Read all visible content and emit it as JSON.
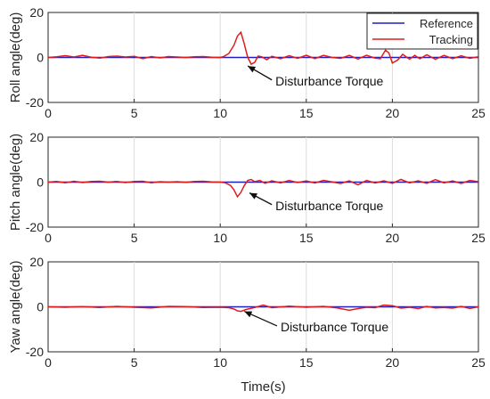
{
  "chart_data": [
    {
      "type": "line",
      "title": "",
      "xlabel": "",
      "ylabel": "Roll angle(deg)",
      "xlim": [
        0,
        25
      ],
      "ylim": [
        -20,
        20
      ],
      "x_ticks": [
        0,
        5,
        10,
        15,
        20,
        25
      ],
      "y_ticks": [
        -20,
        0,
        20
      ],
      "grid": "vertical",
      "legend": {
        "position": "top-right",
        "items": [
          {
            "name": "Reference",
            "color": "#1f1fbf"
          },
          {
            "name": "Tracking",
            "color": "#e01b1b"
          }
        ]
      },
      "annotation": {
        "text": "Disturbance Torque",
        "arrow_to": [
          11.6,
          -3.8
        ],
        "arrow_from": [
          13.0,
          -10.0
        ]
      },
      "series": [
        {
          "name": "Reference",
          "color": "#1f1fbf",
          "x": [
            0,
            25
          ],
          "y": [
            0,
            0
          ]
        },
        {
          "name": "Tracking",
          "color": "#e01b1b",
          "x": [
            0,
            0.5,
            1.0,
            1.5,
            2.0,
            2.5,
            3.0,
            3.5,
            4.0,
            4.5,
            5.0,
            5.5,
            6.0,
            6.5,
            7.0,
            7.5,
            8.0,
            8.5,
            9.0,
            9.5,
            10.0,
            10.2,
            10.5,
            10.8,
            11.0,
            11.2,
            11.4,
            11.6,
            11.8,
            12.0,
            12.2,
            12.4,
            12.7,
            13.0,
            13.5,
            14.0,
            14.5,
            15.0,
            15.5,
            16.0,
            16.5,
            17.0,
            17.5,
            18.0,
            18.5,
            19.0,
            19.3,
            19.6,
            19.8,
            20.0,
            20.3,
            20.6,
            21.0,
            21.3,
            21.6,
            22.0,
            22.5,
            23.0,
            23.5,
            24.0,
            24.5,
            25.0
          ],
          "y": [
            0,
            0.3,
            0.8,
            0.2,
            0.9,
            0.1,
            -0.3,
            0.4,
            0.6,
            0.2,
            0.5,
            -0.5,
            0.4,
            -0.2,
            0.4,
            0.2,
            0.0,
            0.3,
            0.4,
            0.1,
            0.0,
            0.4,
            1.8,
            5.5,
            9.5,
            11.2,
            6.0,
            0.0,
            -3.0,
            -2.2,
            0.6,
            0.3,
            -1.0,
            0.5,
            -0.6,
            0.8,
            -0.4,
            1.0,
            -0.5,
            0.9,
            0.0,
            -0.4,
            0.9,
            -0.7,
            1.0,
            -0.3,
            -0.6,
            3.2,
            2.0,
            -2.5,
            -1.2,
            1.4,
            -0.8,
            0.9,
            -0.6,
            1.2,
            -0.8,
            0.9,
            -0.5,
            0.7,
            -0.4,
            0.3
          ]
        }
      ]
    },
    {
      "type": "line",
      "title": "",
      "xlabel": "",
      "ylabel": "Pitch angle(deg)",
      "xlim": [
        0,
        25
      ],
      "ylim": [
        -20,
        20
      ],
      "x_ticks": [
        0,
        5,
        10,
        15,
        20,
        25
      ],
      "y_ticks": [
        -20,
        0,
        20
      ],
      "grid": "vertical",
      "annotation": {
        "text": "Disturbance Torque",
        "arrow_to": [
          11.7,
          -4.8
        ],
        "arrow_from": [
          13.0,
          -10.0
        ]
      },
      "series": [
        {
          "name": "Reference",
          "color": "#1f1fbf",
          "x": [
            0,
            25
          ],
          "y": [
            0,
            0
          ]
        },
        {
          "name": "Tracking",
          "color": "#e01b1b",
          "x": [
            0,
            0.5,
            1.0,
            1.5,
            2.0,
            2.5,
            3.0,
            3.5,
            4.0,
            4.5,
            5.0,
            5.5,
            6.0,
            6.5,
            7.0,
            7.5,
            8.0,
            8.5,
            9.0,
            9.5,
            10.0,
            10.3,
            10.6,
            10.8,
            11.0,
            11.2,
            11.4,
            11.6,
            11.8,
            12.0,
            12.3,
            12.6,
            13.0,
            13.5,
            14.0,
            14.5,
            15.0,
            15.5,
            16.0,
            16.5,
            17.0,
            17.5,
            18.0,
            18.5,
            19.0,
            19.5,
            20.0,
            20.5,
            21.0,
            21.5,
            22.0,
            22.5,
            23.0,
            23.5,
            24.0,
            24.5,
            25.0
          ],
          "y": [
            0,
            0.3,
            -0.3,
            0.4,
            -0.2,
            0.3,
            0.4,
            0.0,
            0.3,
            -0.2,
            0.3,
            0.4,
            -0.3,
            0.2,
            0.0,
            0.2,
            -0.1,
            0.3,
            0.4,
            0.1,
            0.0,
            -0.3,
            -1.5,
            -3.5,
            -6.5,
            -4.5,
            -1.5,
            0.8,
            1.2,
            0.2,
            0.8,
            -0.5,
            0.6,
            -0.3,
            0.7,
            -0.2,
            0.5,
            -0.4,
            0.8,
            0.1,
            -0.6,
            0.6,
            -1.2,
            0.8,
            -0.4,
            0.6,
            -0.5,
            1.2,
            -0.3,
            0.6,
            -0.5,
            1.1,
            -0.3,
            0.5,
            -0.6,
            0.7,
            0.2
          ]
        }
      ]
    },
    {
      "type": "line",
      "title": "",
      "xlabel": "Time(s)",
      "ylabel": "Yaw angle(deg)",
      "xlim": [
        0,
        25
      ],
      "ylim": [
        -20,
        20
      ],
      "x_ticks": [
        0,
        5,
        10,
        15,
        20,
        25
      ],
      "y_ticks": [
        -20,
        0,
        20
      ],
      "grid": "vertical",
      "annotation": {
        "text": "Disturbance Torque",
        "arrow_to": [
          11.4,
          -2.0
        ],
        "arrow_from": [
          13.3,
          -8.5
        ]
      },
      "series": [
        {
          "name": "Reference",
          "color": "#1f1fbf",
          "x": [
            0,
            25
          ],
          "y": [
            0,
            0
          ]
        },
        {
          "name": "Tracking",
          "color": "#e01b1b",
          "x": [
            0,
            1.0,
            2.0,
            3.0,
            4.0,
            5.0,
            6.0,
            7.0,
            8.0,
            9.0,
            10.0,
            10.5,
            10.8,
            11.0,
            11.2,
            11.5,
            12.0,
            12.5,
            13.0,
            14.0,
            15.0,
            16.0,
            16.8,
            17.5,
            18.0,
            18.5,
            19.0,
            19.5,
            20.0,
            20.5,
            21.0,
            21.5,
            22.0,
            22.5,
            23.0,
            23.5,
            24.0,
            24.5,
            25.0
          ],
          "y": [
            0,
            -0.2,
            0.1,
            -0.3,
            0.2,
            -0.2,
            -0.5,
            0.2,
            0.1,
            -0.3,
            -0.2,
            -0.4,
            -1.0,
            -1.8,
            -2.0,
            -1.2,
            -0.3,
            0.8,
            -0.4,
            0.3,
            -0.2,
            0.2,
            -0.5,
            -1.5,
            -0.8,
            -0.2,
            -0.4,
            0.8,
            0.5,
            -0.6,
            -0.2,
            -0.8,
            0.2,
            -0.5,
            -0.3,
            -0.6,
            0.2,
            -0.7,
            0.0
          ]
        }
      ]
    }
  ]
}
